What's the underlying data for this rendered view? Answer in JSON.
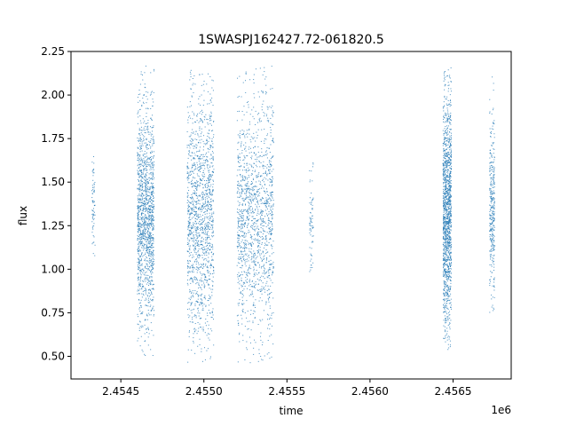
{
  "chart_data": {
    "type": "scatter",
    "title": "1SWASPJ162427.72-061820.5",
    "xlabel": "time",
    "ylabel": "flux",
    "x_offset_label": "1e6",
    "xlim": [
      2454200,
      2456850
    ],
    "ylim": [
      0.37,
      2.25
    ],
    "x_tick_values": [
      2454500,
      2455000,
      2455500,
      2456000,
      2456500
    ],
    "x_tick_labels": [
      "2.4545",
      "2.4550",
      "2.4555",
      "2.4560",
      "2.4565"
    ],
    "y_tick_values": [
      0.5,
      0.75,
      1.0,
      1.25,
      1.5,
      1.75,
      2.0,
      2.25
    ],
    "y_tick_labels": [
      "0.50",
      "0.75",
      "1.00",
      "1.25",
      "1.50",
      "1.75",
      "2.00",
      "2.25"
    ],
    "marker_color": "#1f77b4",
    "grid": false,
    "series": [
      {
        "clusters": [
          {
            "x_range": [
              2454325,
              2454345
            ],
            "y_range": [
              0.97,
              1.77
            ],
            "y_center": 1.35,
            "density": "sparse"
          },
          {
            "x_range": [
              2454600,
              2454700
            ],
            "y_range": [
              0.5,
              2.17
            ],
            "y_center": 1.29,
            "density": "dense"
          },
          {
            "x_range": [
              2454900,
              2455060
            ],
            "y_range": [
              0.45,
              2.17
            ],
            "y_center": 1.3,
            "density": "dense"
          },
          {
            "x_range": [
              2455200,
              2455420
            ],
            "y_range": [
              0.45,
              2.17
            ],
            "y_center": 1.29,
            "density": "dense"
          },
          {
            "x_range": [
              2455635,
              2455660
            ],
            "y_range": [
              0.9,
              1.91
            ],
            "y_center": 1.29,
            "density": "sparse"
          },
          {
            "x_range": [
              2456440,
              2456490
            ],
            "y_range": [
              0.52,
              2.16
            ],
            "y_center": 1.33,
            "density": "dense"
          },
          {
            "x_range": [
              2456720,
              2456750
            ],
            "y_range": [
              0.74,
              2.12
            ],
            "y_center": 1.33,
            "density": "medium"
          }
        ]
      }
    ]
  }
}
